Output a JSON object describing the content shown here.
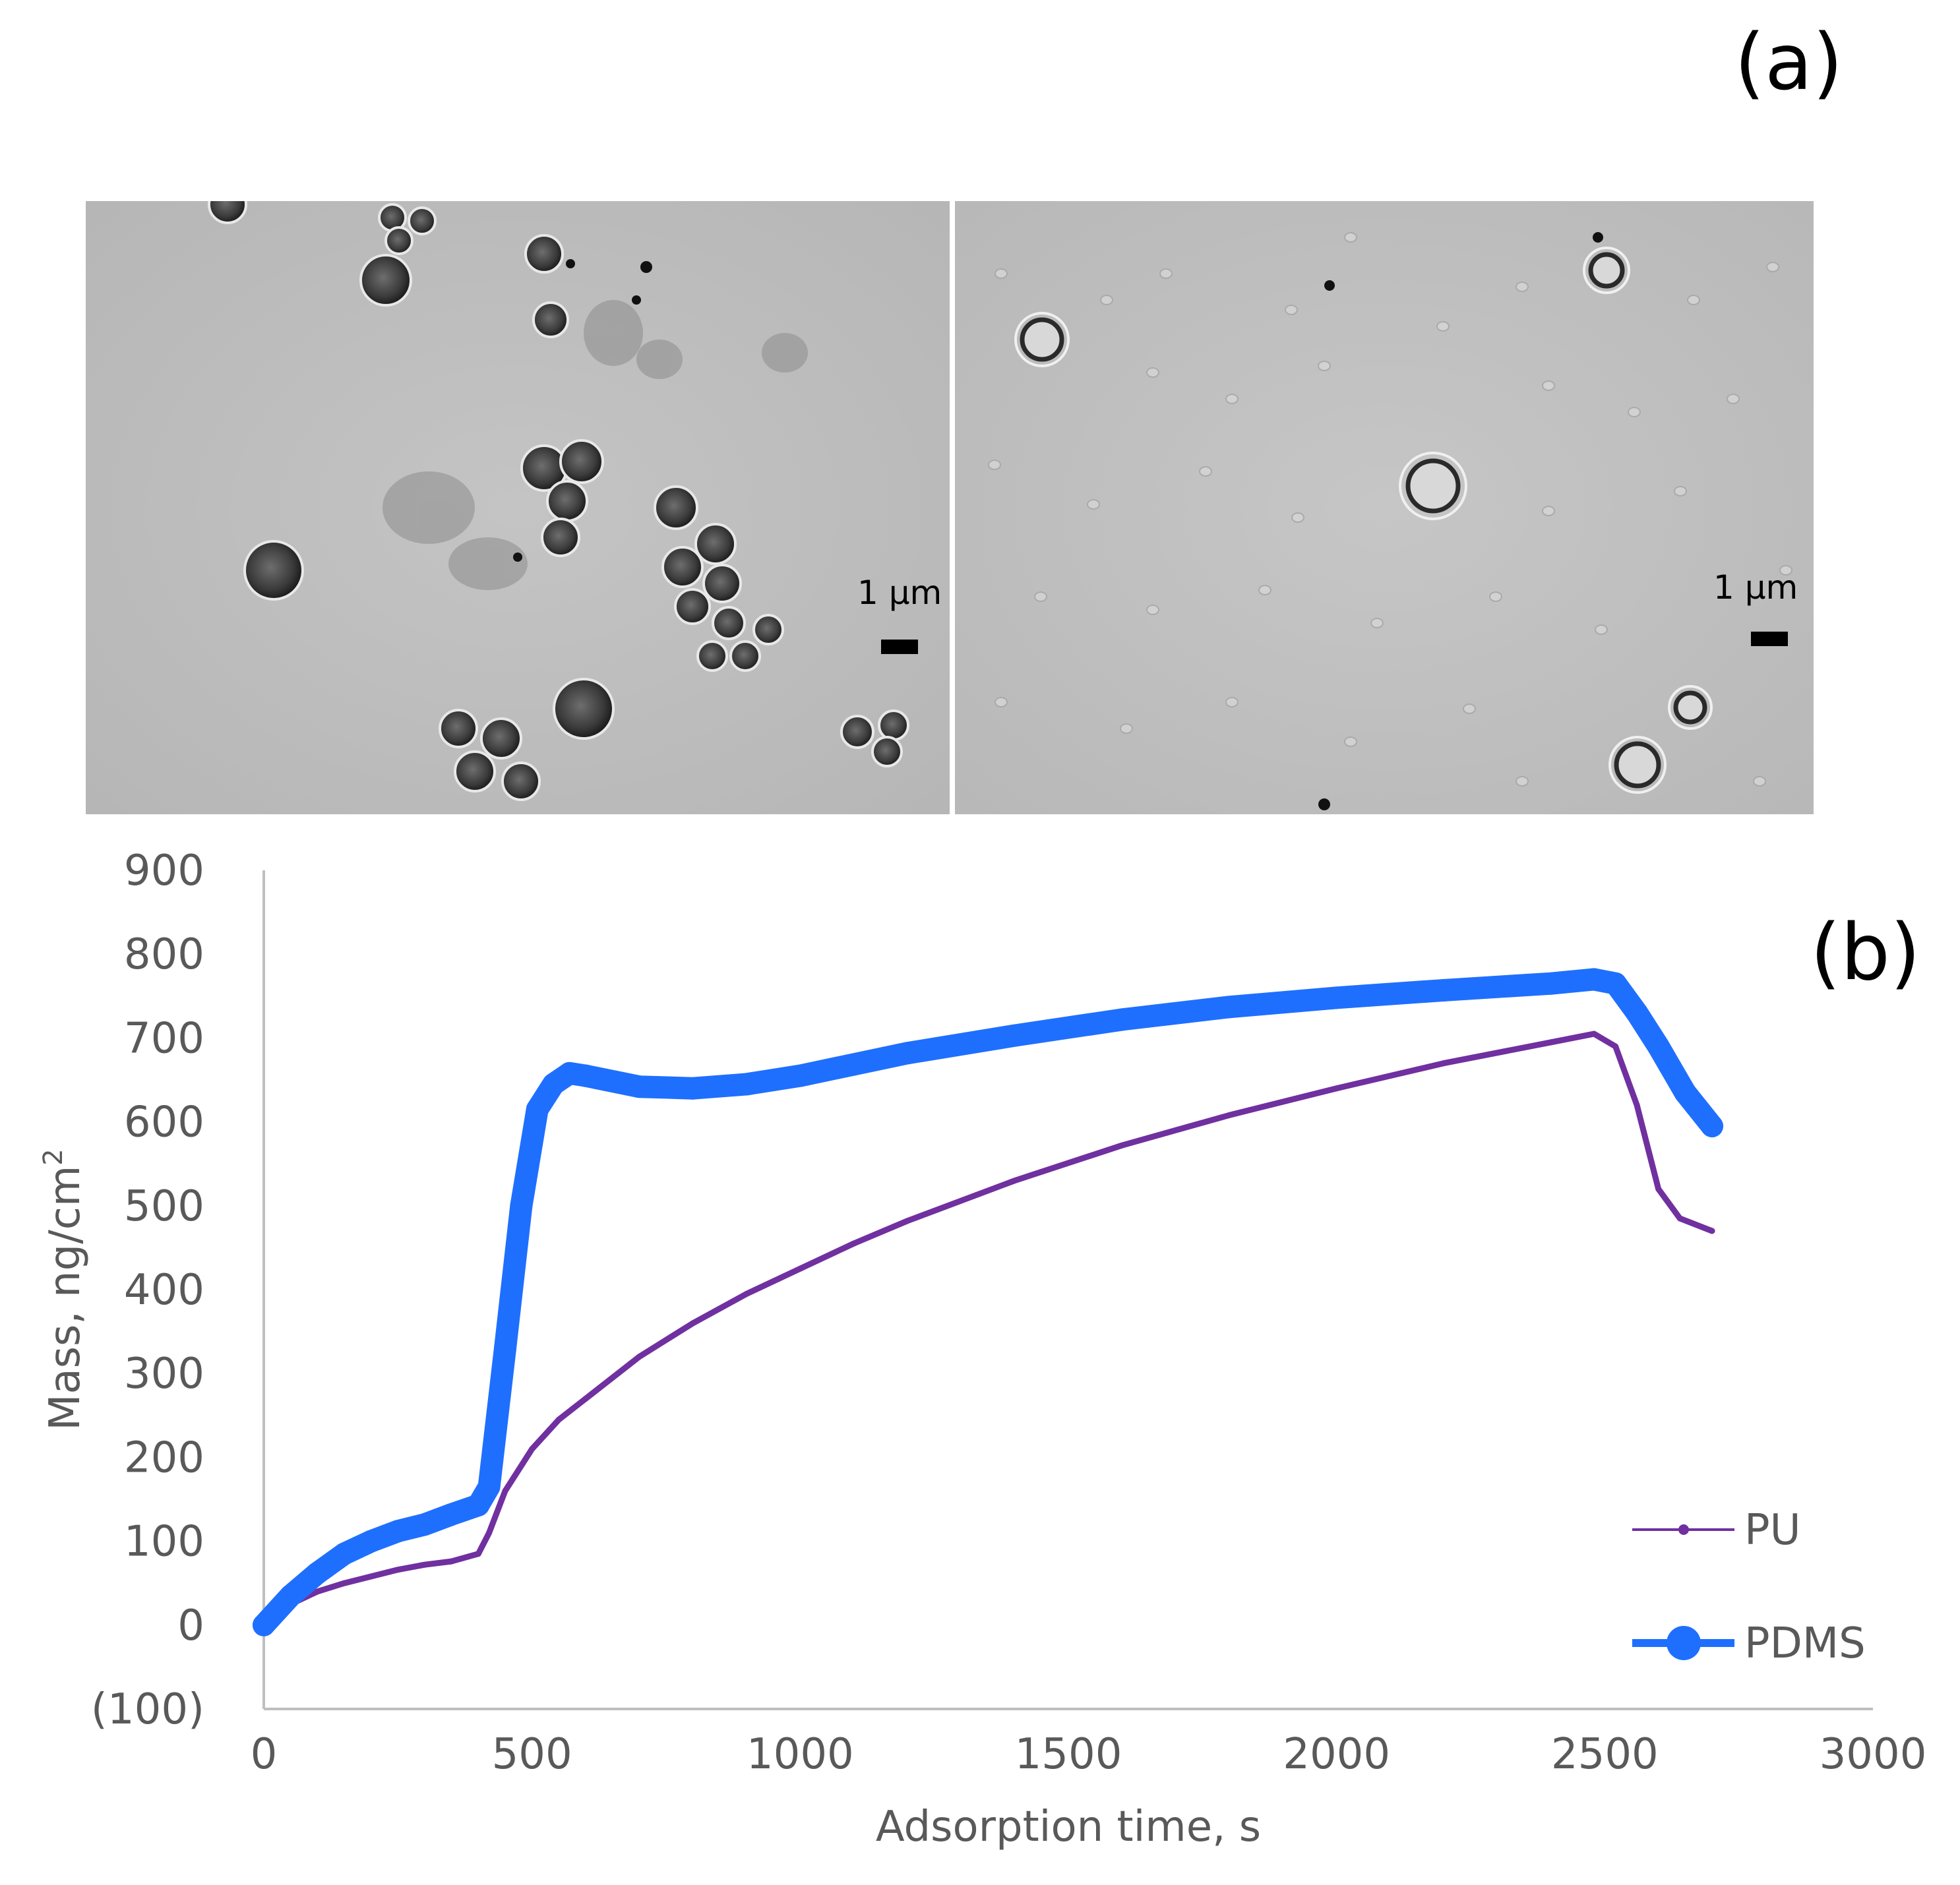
{
  "panels": {
    "a_label": "(a)",
    "b_label": "(b)"
  },
  "micrographs": {
    "left": {
      "scale_label": "1 μm",
      "description_icon": "microscopy-image-icon"
    },
    "right": {
      "scale_label": "1 μm",
      "description_icon": "microscopy-image-icon"
    }
  },
  "colors": {
    "pu": "#7030A0",
    "pdms": "#1F6FFF",
    "axis": "#BFBFBF",
    "text": "#595959"
  },
  "chart_data": {
    "type": "line",
    "title": "",
    "xlabel": "Adsorption time, s",
    "ylabel": "Mass, ng/cm²",
    "xlim": [
      0,
      3000
    ],
    "ylim": [
      -100,
      900
    ],
    "x_ticks": [
      0,
      500,
      1000,
      1500,
      2000,
      2500,
      3000
    ],
    "x_tick_labels": [
      "0",
      "500",
      "1000",
      "1500",
      "2000",
      "2500",
      "3000"
    ],
    "y_ticks": [
      900,
      800,
      700,
      600,
      500,
      400,
      300,
      200,
      100,
      0,
      -100
    ],
    "y_tick_labels": [
      "900",
      "800",
      "700",
      "600",
      "500",
      "400",
      "300",
      "200",
      "100",
      "0",
      "(100)"
    ],
    "legend_position": "bottom-right",
    "series": [
      {
        "name": "PU",
        "x": [
          0,
          50,
          100,
          150,
          200,
          250,
          300,
          350,
          400,
          420,
          450,
          500,
          550,
          600,
          700,
          800,
          900,
          1000,
          1100,
          1200,
          1400,
          1600,
          1800,
          2000,
          2200,
          2400,
          2480,
          2520,
          2560,
          2600,
          2640,
          2700
        ],
        "values": [
          0,
          25,
          40,
          50,
          58,
          66,
          72,
          76,
          85,
          110,
          160,
          210,
          245,
          270,
          320,
          360,
          395,
          425,
          455,
          482,
          530,
          572,
          608,
          640,
          670,
          695,
          705,
          690,
          620,
          520,
          485,
          470
        ]
      },
      {
        "name": "PDMS",
        "x": [
          0,
          50,
          100,
          150,
          200,
          250,
          300,
          350,
          400,
          420,
          450,
          480,
          510,
          540,
          570,
          600,
          700,
          800,
          900,
          1000,
          1200,
          1400,
          1600,
          1800,
          2000,
          2200,
          2400,
          2480,
          2520,
          2560,
          2600,
          2650,
          2700
        ],
        "values": [
          0,
          35,
          62,
          85,
          100,
          112,
          120,
          132,
          143,
          165,
          330,
          500,
          615,
          645,
          658,
          655,
          642,
          640,
          645,
          655,
          682,
          703,
          722,
          737,
          748,
          757,
          765,
          770,
          765,
          730,
          690,
          635,
          595
        ]
      }
    ]
  }
}
